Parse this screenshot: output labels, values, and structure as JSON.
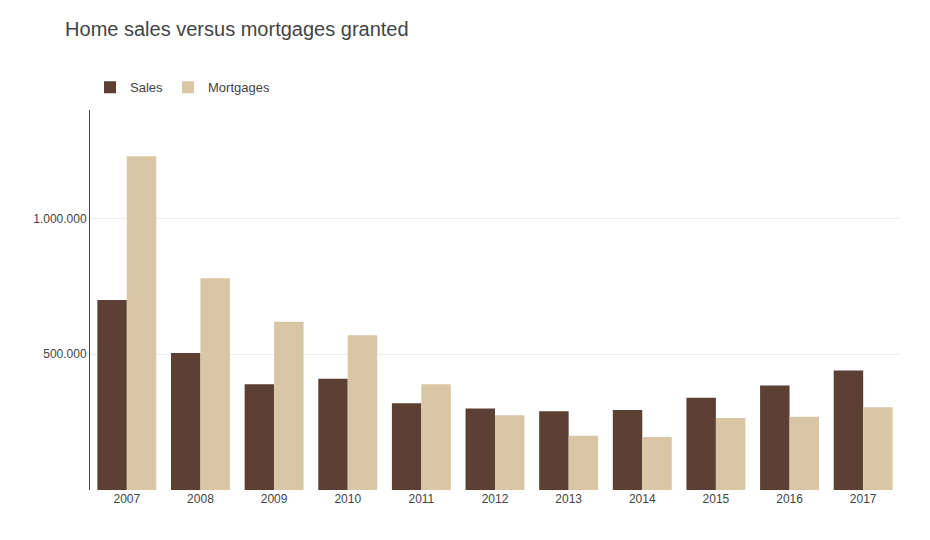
{
  "chart_data": {
    "type": "bar",
    "title": "Home sales versus mortgages granted",
    "categories": [
      "2007",
      "2008",
      "2009",
      "2010",
      "2011",
      "2012",
      "2013",
      "2014",
      "2015",
      "2016",
      "2017"
    ],
    "series": [
      {
        "name": "Sales",
        "color": "#5C4033",
        "values": [
          700000,
          505000,
          390000,
          410000,
          320000,
          300000,
          290000,
          295000,
          340000,
          385000,
          440000
        ]
      },
      {
        "name": "Mortgages",
        "color": "#D9C6A5",
        "values": [
          1230000,
          780000,
          620000,
          570000,
          390000,
          275000,
          200000,
          195000,
          265000,
          270000,
          305000
        ]
      }
    ],
    "ylim": [
      0,
      1400000
    ],
    "yticks": [
      {
        "value": 0,
        "label": ""
      },
      {
        "value": 500000,
        "label": "500.000"
      },
      {
        "value": 1000000,
        "label": "1.000.000"
      }
    ],
    "grid": true,
    "legend": "upper left"
  }
}
